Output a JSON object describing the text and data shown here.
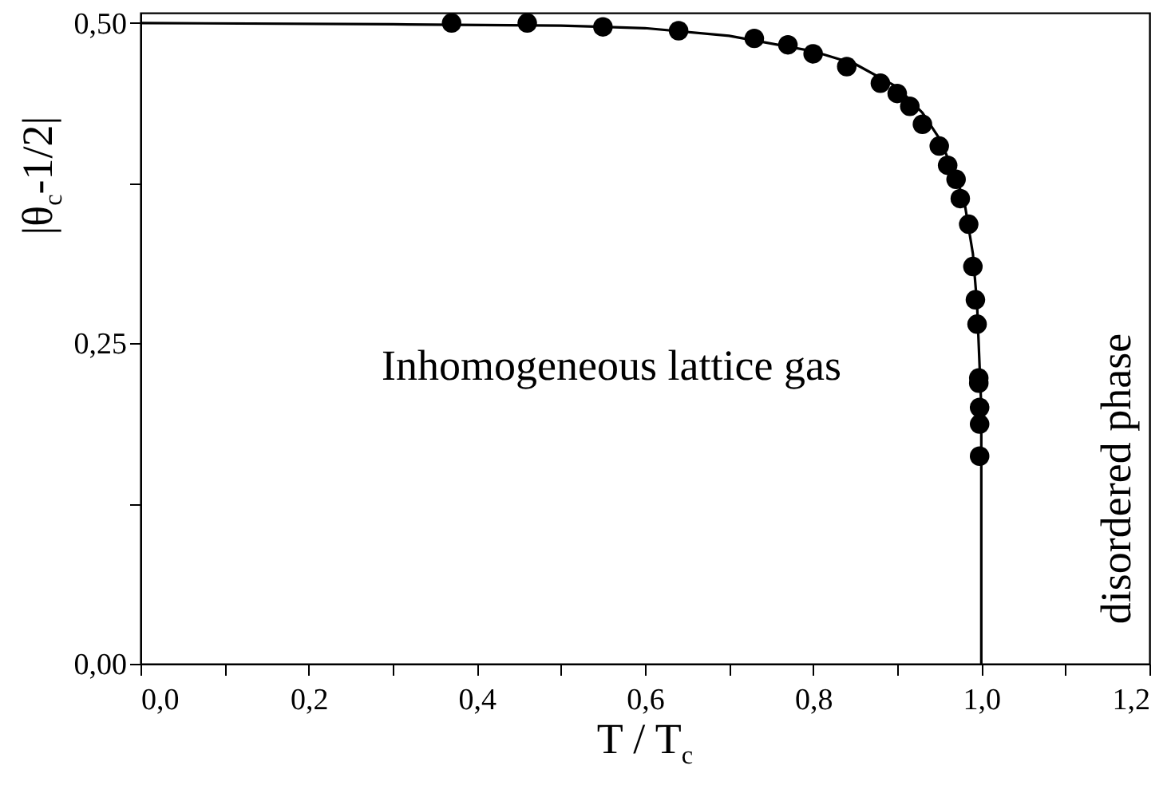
{
  "chart_data": {
    "type": "scatter",
    "xlabel": "T / T$_{c}$",
    "ylabel": "|θ$_{c}$-1/2|",
    "xlim": [
      0,
      1.2
    ],
    "ylim": [
      0,
      0.508
    ],
    "xticks": [
      {
        "value": 0,
        "label": "0,0"
      },
      {
        "value": 0.1,
        "label": null
      },
      {
        "value": 0.2,
        "label": "0,2"
      },
      {
        "value": 0.3,
        "label": null
      },
      {
        "value": 0.4,
        "label": "0,4"
      },
      {
        "value": 0.5,
        "label": null
      },
      {
        "value": 0.6,
        "label": "0,6"
      },
      {
        "value": 0.7,
        "label": null
      },
      {
        "value": 0.8,
        "label": "0,8"
      },
      {
        "value": 0.9,
        "label": null
      },
      {
        "value": 1.0,
        "label": "1,0"
      },
      {
        "value": 1.1,
        "label": null
      },
      {
        "value": 1.2,
        "label": "1,2"
      }
    ],
    "yticks": [
      {
        "value": 0,
        "label": "0,00"
      },
      {
        "value": 0.125,
        "label": null
      },
      {
        "value": 0.25,
        "label": "0,25"
      },
      {
        "value": 0.375,
        "label": null
      },
      {
        "value": 0.5,
        "label": "0,50"
      }
    ],
    "line_style": "solid",
    "annotations": [
      "Inhomogeneous lattice gas",
      "disordered phase"
    ],
    "series": [
      {
        "marker": "circle",
        "color": "#000000",
        "x": [
          0.37,
          0.46,
          0.55,
          0.64,
          0.73,
          0.77,
          0.8,
          0.84,
          0.88,
          0.9,
          0.915,
          0.93,
          0.95,
          0.96,
          0.97,
          0.975,
          0.985,
          0.99,
          0.993,
          0.995,
          0.997,
          0.997,
          0.998,
          0.998,
          0.998
        ],
        "values": [
          0.5,
          0.5,
          0.497,
          0.494,
          0.488,
          0.483,
          0.476,
          0.466,
          0.453,
          0.445,
          0.435,
          0.421,
          0.404,
          0.389,
          0.378,
          0.363,
          0.343,
          0.31,
          0.284,
          0.265,
          0.223,
          0.219,
          0.2,
          0.187,
          0.162
        ]
      },
      {
        "type": "line",
        "marker": "none",
        "color": "#000000",
        "x": [
          0,
          0.3,
          0.5,
          0.6,
          0.7,
          0.8,
          0.85,
          0.9,
          0.93,
          0.95,
          0.97,
          0.98,
          0.99,
          0.995,
          1.0,
          1.0
        ],
        "values": [
          0.5,
          0.499,
          0.498,
          0.496,
          0.49,
          0.478,
          0.468,
          0.45,
          0.43,
          0.41,
          0.38,
          0.36,
          0.32,
          0.28,
          0.2,
          0
        ]
      }
    ]
  }
}
